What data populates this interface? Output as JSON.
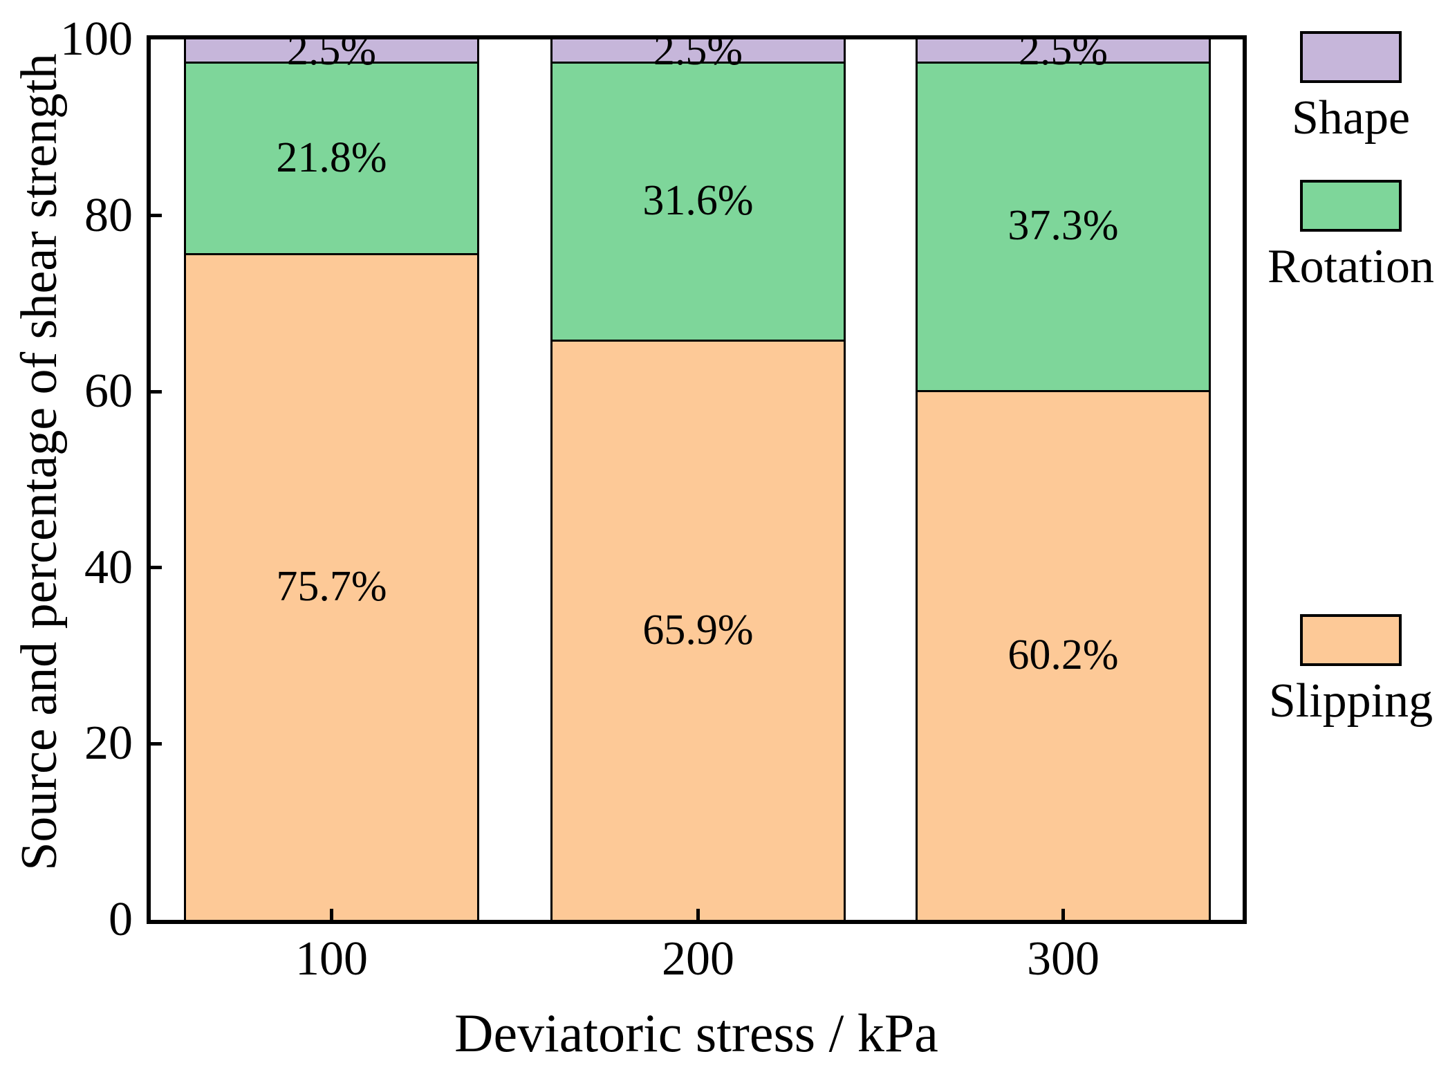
{
  "chart_data": {
    "type": "bar",
    "stacked": true,
    "title": "",
    "xlabel": "Deviatoric stress / kPa",
    "ylabel": "Source and percentage of shear strength",
    "categories": [
      "100",
      "200",
      "300"
    ],
    "series": [
      {
        "name": "Slipping",
        "color": "#FDC997",
        "values": [
          75.7,
          65.9,
          60.2
        ],
        "labels": [
          "75.7%",
          "65.9%",
          "60.2%"
        ]
      },
      {
        "name": "Rotation",
        "color": "#7ED69A",
        "values": [
          21.8,
          31.6,
          37.3
        ],
        "labels": [
          "21.8%",
          "31.6%",
          "37.3%"
        ]
      },
      {
        "name": "Shape",
        "color": "#C6B6DA",
        "values": [
          2.5,
          2.5,
          2.5
        ],
        "labels": [
          "2.5%",
          "2.5%",
          "2.5%"
        ]
      }
    ],
    "ylim": [
      0,
      100
    ],
    "y_ticks": [
      "0",
      "20",
      "40",
      "60",
      "80",
      "100"
    ],
    "grid": false,
    "legend_position": "right",
    "legend": [
      {
        "label": "Shape",
        "color": "#C6B6DA"
      },
      {
        "label": "Rotation",
        "color": "#7ED69A"
      },
      {
        "label": "Slipping",
        "color": "#FDC997"
      }
    ],
    "axis_color": "#000000",
    "label_color": "#000000"
  }
}
